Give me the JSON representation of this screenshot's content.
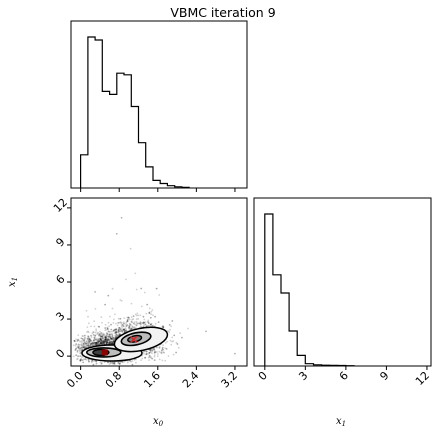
{
  "chart_data": {
    "type": "corner",
    "title": "VBMC iteration 9",
    "parameters": [
      "x_0",
      "x_1"
    ],
    "axis_labels": {
      "x0": {
        "base": "x",
        "sub": "0"
      },
      "x1": {
        "base": "x",
        "sub": "1"
      }
    },
    "x0_hist": {
      "xlim": [
        -0.2,
        3.45
      ],
      "bin_edges": [
        0.0,
        0.15,
        0.3,
        0.45,
        0.6,
        0.75,
        0.9,
        1.05,
        1.2,
        1.35,
        1.5,
        1.65,
        1.8,
        1.95,
        2.1,
        2.25
      ],
      "counts": [
        0.22,
        1.0,
        0.98,
        0.64,
        0.62,
        0.76,
        0.75,
        0.54,
        0.3,
        0.14,
        0.05,
        0.03,
        0.015,
        0.008,
        0.004
      ]
    },
    "x1_hist": {
      "xlim": [
        -0.8,
        12.3
      ],
      "bin_edges": [
        0,
        0.6,
        1.2,
        1.8,
        2.4,
        3.0,
        3.6,
        4.2,
        4.8,
        5.4,
        6.0,
        6.6
      ],
      "counts": [
        1.0,
        0.6,
        0.48,
        0.23,
        0.07,
        0.015,
        0.008,
        0.005,
        0.004,
        0.003,
        0.002
      ]
    },
    "scatter_2d": {
      "xlim": [
        -0.2,
        3.45
      ],
      "ylim": [
        -0.8,
        12.8
      ],
      "x_ticks": [
        "0.0",
        "0.8",
        "1.6",
        "2.4",
        "3.2"
      ],
      "y_ticks": [
        "0",
        "3",
        "6",
        "9",
        "12"
      ],
      "density_center": [
        0.65,
        0.8
      ],
      "contour_levels": 3,
      "markers": [
        {
          "symbol": "x",
          "x": 1.1,
          "y": 1.35,
          "color": "#d62728"
        },
        {
          "symbol": "square",
          "x": 0.5,
          "y": 0.3,
          "color": "#8b0000"
        }
      ]
    },
    "x1_hist_ticks": [
      "0",
      "3",
      "6",
      "9",
      "12"
    ],
    "x0_hist_ticks": [
      "0.0",
      "0.8",
      "1.6",
      "2.4",
      "3.2"
    ]
  }
}
